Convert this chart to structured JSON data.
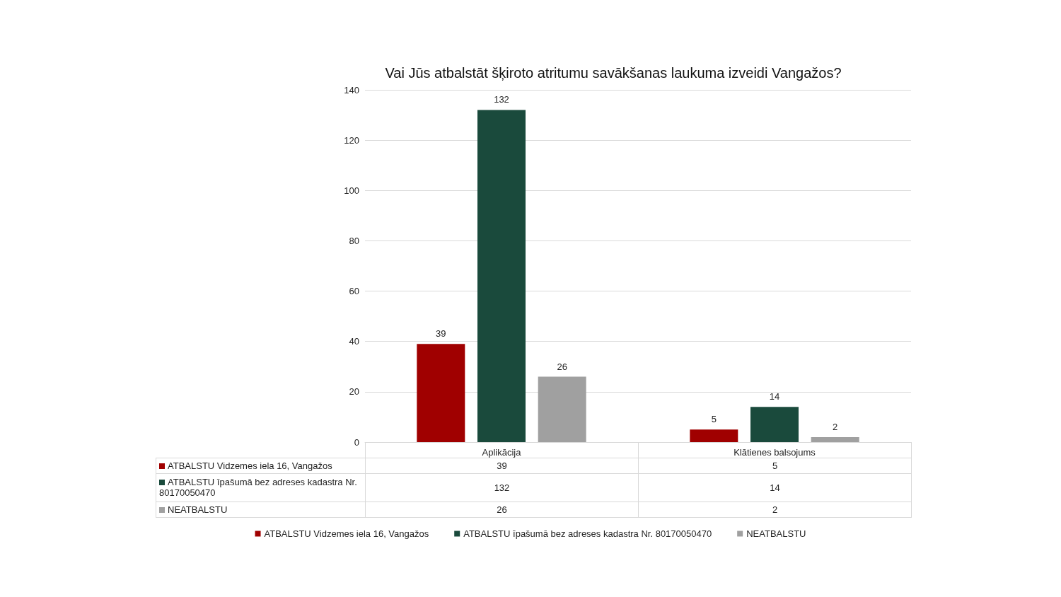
{
  "chart_data": {
    "type": "bar",
    "title": "Vai Jūs atbalstāt šķiroto atritumu savākšanas laukuma izveidi Vangažos?",
    "categories": [
      "Aplikācija",
      "Klātienes balsojums"
    ],
    "series": [
      {
        "name": "ATBALSTU Vidzemes iela 16, Vangažos",
        "color": "#a00000",
        "values": [
          39,
          5
        ],
        "value_labels": [
          "39",
          "5"
        ]
      },
      {
        "name": "ATBALSTU īpašumā bez adreses kadastra Nr. 80170050470",
        "color": "#1a4a3c",
        "values": [
          132,
          14
        ],
        "value_labels": [
          "132",
          "14"
        ]
      },
      {
        "name": "NEATBALSTU",
        "color": "#a0a0a0",
        "values": [
          26,
          2
        ],
        "value_labels": [
          "26",
          "2"
        ]
      }
    ],
    "ylim": [
      0,
      140
    ],
    "yticks": [
      0,
      20,
      40,
      60,
      80,
      100,
      120,
      140
    ],
    "grid": "y",
    "legend": "bottom",
    "annotations": [
      "39",
      "5",
      "132",
      "14",
      "26",
      "2"
    ]
  }
}
